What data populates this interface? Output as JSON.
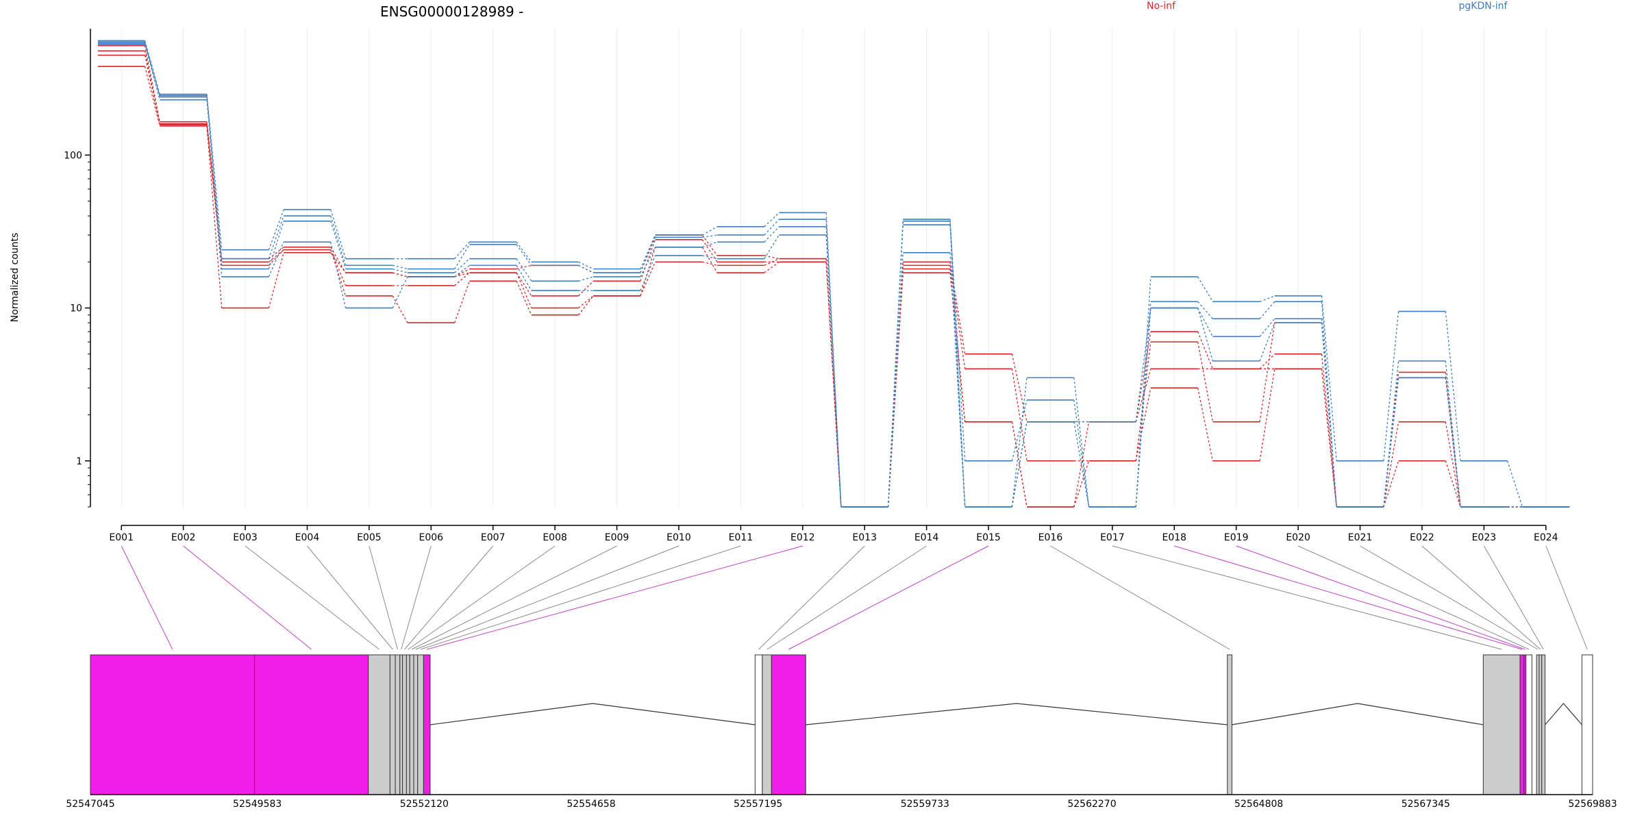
{
  "chart_data": {
    "type": "line",
    "title": "ENSG00000128989 -",
    "ylabel": "Normalized counts",
    "yscale": "log",
    "yticks": [
      1,
      10,
      100
    ],
    "ytick_labels": [
      "1",
      "10",
      "100"
    ],
    "ylim": [
      0.5,
      670
    ],
    "legend": [
      {
        "label": "No-inf",
        "color": "#d62728"
      },
      {
        "label": "pgKDN-inf",
        "color": "#3a7ebf"
      }
    ],
    "categories": [
      "E001",
      "E002",
      "E003",
      "E004",
      "E005",
      "E006",
      "E007",
      "E008",
      "E009",
      "E010",
      "E011",
      "E012",
      "E013",
      "E014",
      "E015",
      "E016",
      "E017",
      "E018",
      "E019",
      "E020",
      "E021",
      "E022",
      "E023",
      "E024"
    ],
    "series": [
      {
        "group": "No-inf",
        "color": "#d62728",
        "values": [
          520,
          165,
          21,
          25,
          17,
          16,
          18,
          19,
          17,
          30,
          22,
          21,
          0.5,
          20,
          5,
          1.8,
          1.8,
          7,
          4,
          5,
          0.5,
          3.8,
          0.5,
          0.5
        ]
      },
      {
        "group": "No-inf",
        "color": "#d62728",
        "values": [
          480,
          160,
          20,
          24,
          14,
          14,
          17,
          12,
          15,
          28,
          20,
          20,
          0.5,
          19,
          4,
          1,
          1,
          6,
          1.8,
          8,
          0.5,
          1.8,
          0.5,
          0.5
        ]
      },
      {
        "group": "No-inf",
        "color": "#d62728",
        "values": [
          450,
          158,
          19,
          24,
          12,
          8,
          15,
          9,
          12,
          25,
          17,
          20,
          0.5,
          18,
          1.8,
          0.5,
          1,
          3,
          1,
          4,
          0.5,
          1,
          0.5,
          0.5
        ]
      },
      {
        "group": "No-inf",
        "color": "#d62728",
        "values": [
          380,
          155,
          10,
          23,
          17,
          16,
          17,
          10,
          12,
          20,
          19,
          21,
          0.5,
          17,
          1.8,
          0.5,
          1.8,
          4,
          4,
          4,
          0.5,
          3.5,
          0.5,
          0.5
        ]
      },
      {
        "group": "pgKDN-inf",
        "color": "#3a7ebf",
        "values": [
          560,
          250,
          24,
          44,
          21,
          21,
          27,
          20,
          18,
          30,
          34,
          42,
          0.5,
          38,
          0.5,
          3.5,
          0.5,
          16,
          11,
          12,
          1,
          9.5,
          1,
          0.5
        ]
      },
      {
        "group": "pgKDN-inf",
        "color": "#3a7ebf",
        "values": [
          540,
          240,
          21,
          40,
          19,
          18,
          26,
          19,
          17,
          29,
          30,
          38,
          0.5,
          37,
          1,
          2.5,
          0.5,
          11,
          8.5,
          11,
          0.5,
          4.5,
          0.5,
          0.5
        ]
      },
      {
        "group": "pgKDN-inf",
        "color": "#3a7ebf",
        "values": [
          530,
          230,
          18,
          37,
          18,
          17,
          21,
          15,
          16,
          25,
          27,
          34,
          0.5,
          35,
          0.5,
          1.8,
          1.8,
          10,
          6.5,
          8.5,
          0.5,
          3.5,
          0.5,
          0.5
        ]
      },
      {
        "group": "pgKDN-inf",
        "color": "#3a7ebf",
        "values": [
          550,
          245,
          16,
          27,
          10,
          16,
          19,
          13,
          13,
          22,
          21,
          30,
          0.5,
          23,
          0.5,
          1.8,
          0.5,
          10,
          4.5,
          8,
          0.5,
          3.5,
          0.5,
          0.5
        ]
      }
    ],
    "gene_model": {
      "coordinate_labels": [
        "52547045",
        "52549583",
        "52552120",
        "52554658",
        "52557195",
        "52559733",
        "52562270",
        "52564808",
        "52567345",
        "52569883"
      ],
      "coord_range": [
        52547045,
        52569883
      ],
      "exons": [
        {
          "id": "E001",
          "start": 52547045,
          "end": 52549540,
          "highlight": true
        },
        {
          "id": "E002",
          "start": 52549540,
          "end": 52551270,
          "highlight": true
        },
        {
          "id": "E003",
          "start": 52551270,
          "end": 52551600,
          "highlight": false
        },
        {
          "id": "E004",
          "start": 52551600,
          "end": 52551680,
          "highlight": false
        },
        {
          "id": "E005",
          "start": 52551680,
          "end": 52551750,
          "highlight": false
        },
        {
          "id": "E006",
          "start": 52551750,
          "end": 52551790,
          "highlight": false
        },
        {
          "id": "E007",
          "start": 52551790,
          "end": 52551850,
          "highlight": false
        },
        {
          "id": "E008",
          "start": 52551850,
          "end": 52551900,
          "highlight": false
        },
        {
          "id": "E009",
          "start": 52551900,
          "end": 52551960,
          "highlight": false
        },
        {
          "id": "E010",
          "start": 52551960,
          "end": 52552020,
          "highlight": false
        },
        {
          "id": "E011",
          "start": 52552020,
          "end": 52552110,
          "highlight": false
        },
        {
          "id": "E012",
          "start": 52552110,
          "end": 52552210,
          "highlight": true
        },
        {
          "id": "E013",
          "start": 52557150,
          "end": 52557260,
          "highlight": false,
          "empty": true
        },
        {
          "id": "E014",
          "start": 52557260,
          "end": 52557400,
          "highlight": false
        },
        {
          "id": "E015",
          "start": 52557400,
          "end": 52557920,
          "highlight": true
        },
        {
          "id": "E016",
          "start": 52564330,
          "end": 52564400,
          "highlight": false
        },
        {
          "id": "E017",
          "start": 52568220,
          "end": 52568780,
          "highlight": false
        },
        {
          "id": "E018",
          "start": 52568780,
          "end": 52568840,
          "highlight": true
        },
        {
          "id": "E019",
          "start": 52568840,
          "end": 52568870,
          "highlight": true
        },
        {
          "id": "E020",
          "start": 52568870,
          "end": 52568960,
          "highlight": false,
          "empty": true
        },
        {
          "id": "E021",
          "start": 52569030,
          "end": 52569070,
          "highlight": false
        },
        {
          "id": "E022",
          "start": 52569070,
          "end": 52569110,
          "highlight": false
        },
        {
          "id": "E023",
          "start": 52569110,
          "end": 52569160,
          "highlight": false
        },
        {
          "id": "E024",
          "start": 52569720,
          "end": 52569883,
          "highlight": false,
          "empty": true
        }
      ],
      "introns": [
        [
          52552210,
          52557150
        ],
        [
          52557920,
          52564330
        ],
        [
          52564400,
          52568220
        ],
        [
          52569160,
          52569720
        ]
      ]
    }
  }
}
